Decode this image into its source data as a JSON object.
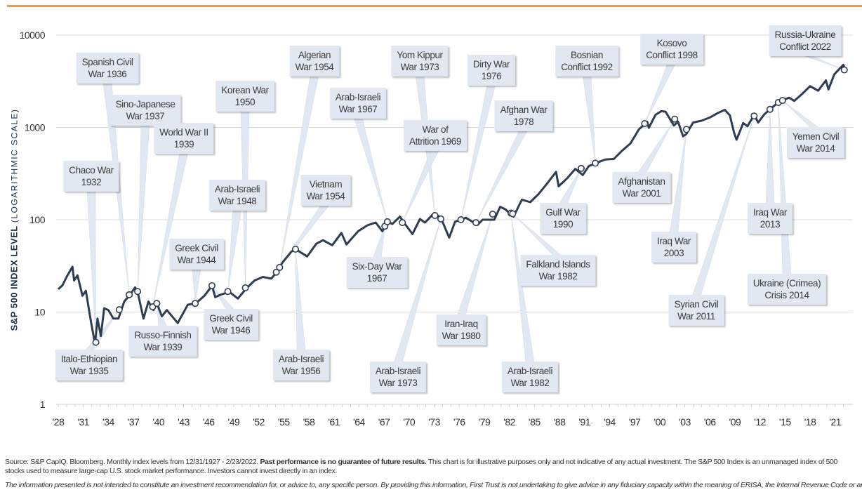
{
  "chart_data": {
    "type": "line",
    "title": "",
    "ylabel": "S&P 500 INDEX LEVEL",
    "ylabel_note": "(LOGARITHMIC SCALE)",
    "y_scale": "log",
    "ylim": [
      1,
      10000
    ],
    "y_ticks": [
      "1",
      "10",
      "100",
      "1000",
      "10000"
    ],
    "x_ticks": [
      "'28",
      "'31",
      "'34",
      "'37",
      "'40",
      "'43",
      "'46",
      "'49",
      "'52",
      "'55",
      "'58",
      "'61",
      "'64",
      "'67",
      "'70",
      "'73",
      "'76",
      "'79",
      "'82",
      "'85",
      "'88",
      "'91",
      "'94",
      "'97",
      "'00",
      "'03",
      "'06",
      "'09",
      "'12",
      "'15",
      "'18",
      "'21"
    ],
    "xlim": [
      1928,
      2022.15
    ],
    "grid": "horizontal",
    "line_color": "#2e3d52",
    "accent_color": "#ef9a4a",
    "callout_color": "#e1e8f2",
    "series": [
      {
        "x": [
          1928.0,
          1928.5,
          1929.0,
          1929.7,
          1929.9,
          1930.3,
          1930.9,
          1931.3,
          1931.9,
          1932.4,
          1932.7,
          1933.1,
          1933.5,
          1934.0,
          1934.6,
          1935.2,
          1935.9,
          1936.5,
          1937.2,
          1937.5,
          1938.2,
          1938.8,
          1939.4,
          1939.8,
          1940.4,
          1941.0,
          1942.3,
          1943.5,
          1944.5,
          1945.5,
          1946.4,
          1946.8,
          1947.5,
          1948.5,
          1949.5,
          1950.5,
          1951.5,
          1952.5,
          1953.5,
          1954.0,
          1954.9,
          1955.9,
          1956.4,
          1957.8,
          1958.9,
          1959.7,
          1960.8,
          1961.9,
          1962.5,
          1963.9,
          1965.0,
          1966.0,
          1966.8,
          1967.4,
          1968.0,
          1968.9,
          1969.5,
          1970.4,
          1971.3,
          1971.9,
          1973.0,
          1973.8,
          1974.8,
          1975.5,
          1976.8,
          1978.2,
          1978.8,
          1980.2,
          1980.9,
          1981.5,
          1982.5,
          1983.5,
          1984.5,
          1985.5,
          1986.5,
          1987.6,
          1987.9,
          1988.9,
          1989.9,
          1990.8,
          1991.5,
          1992.5,
          1993.5,
          1994.5,
          1995.5,
          1996.5,
          1997.5,
          1998.5,
          1998.7,
          1999.5,
          2000.2,
          2000.7,
          2001.7,
          2002.2,
          2002.8,
          2003.2,
          2004.0,
          2005.0,
          2006.0,
          2007.0,
          2007.8,
          2008.4,
          2008.9,
          2009.2,
          2010.0,
          2010.5,
          2011.3,
          2011.8,
          2012.5,
          2013.2,
          2014.0,
          2014.7,
          2015.5,
          2016.1,
          2017.0,
          2018.0,
          2018.97,
          2019.9,
          2020.2,
          2020.9,
          2021.5,
          2021.99,
          2022.15
        ],
        "values": [
          17.7,
          19.5,
          24,
          31,
          22,
          25,
          15,
          17,
          8,
          4.5,
          8.5,
          5.5,
          11,
          10.5,
          8.5,
          8.5,
          13,
          15,
          18.5,
          16.5,
          8.5,
          13,
          10.5,
          12.5,
          9,
          10.5,
          7.6,
          12,
          12.5,
          15,
          19.2,
          14.5,
          15.5,
          16.5,
          14,
          18,
          22,
          24,
          23,
          26,
          35,
          45,
          48,
          40,
          55,
          60,
          53,
          72,
          54,
          75,
          87,
          93,
          75,
          95,
          90,
          108,
          90,
          70,
          102,
          93,
          118,
          105,
          64,
          95,
          105,
          88,
          100,
          100,
          138,
          130,
          108,
          165,
          155,
          190,
          245,
          330,
          230,
          280,
          355,
          305,
          380,
          415,
          450,
          455,
          560,
          670,
          950,
          1150,
          990,
          1370,
          1500,
          1480,
          1050,
          1150,
          800,
          850,
          1130,
          1180,
          1280,
          1440,
          1550,
          1350,
          880,
          735,
          1115,
          1030,
          1360,
          1130,
          1380,
          1570,
          1800,
          1970,
          2100,
          1940,
          2280,
          2800,
          2500,
          3230,
          2580,
          3750,
          4300,
          4770,
          4300
        ]
      }
    ],
    "events": [
      {
        "lines": [
          "Chaco War",
          "1932"
        ],
        "x": 1932.5,
        "value": 4.7
      },
      {
        "lines": [
          "Italo-Ethiopian",
          "War 1935"
        ],
        "x": 1935.3,
        "value": 10.6
      },
      {
        "lines": [
          "Spanish Civil",
          "War 1936"
        ],
        "x": 1936.5,
        "value": 15.4
      },
      {
        "lines": [
          "Sino-Japanese",
          "War 1937"
        ],
        "x": 1937.5,
        "value": 16.7
      },
      {
        "lines": [
          "World War II",
          "1939"
        ],
        "x": 1939.3,
        "value": 11.4
      },
      {
        "lines": [
          "Russo-Finnish",
          "War 1939"
        ],
        "x": 1939.8,
        "value": 12.4
      },
      {
        "lines": [
          "Greek Civil",
          "War 1944"
        ],
        "x": 1944.4,
        "value": 12.4
      },
      {
        "lines": [
          "Greek Civil",
          "War 1946"
        ],
        "x": 1946.4,
        "value": 19.3
      },
      {
        "lines": [
          "Arab-Israeli",
          "War 1948"
        ],
        "x": 1948.3,
        "value": 16.7
      },
      {
        "lines": [
          "Korean War",
          "1950"
        ],
        "x": 1950.4,
        "value": 18.3
      },
      {
        "lines": [
          "Vietnam",
          "War 1954"
        ],
        "x": 1954.1,
        "value": 27
      },
      {
        "lines": [
          "Algerian",
          "War 1954"
        ],
        "x": 1954.5,
        "value": 30.5
      },
      {
        "lines": [
          "Arab-Israeli",
          "War 1956"
        ],
        "x": 1956.4,
        "value": 48
      },
      {
        "lines": [
          "Six-Day War",
          "1967"
        ],
        "x": 1967.1,
        "value": 85
      },
      {
        "lines": [
          "Arab-Israeli",
          "War 1967"
        ],
        "x": 1967.4,
        "value": 95
      },
      {
        "lines": [
          "War of",
          "Attrition 1969"
        ],
        "x": 1969.2,
        "value": 93
      },
      {
        "lines": [
          "Yom Kippur",
          "War 1973"
        ],
        "x": 1973.1,
        "value": 111
      },
      {
        "lines": [
          "Arab-Israeli",
          "War 1973"
        ],
        "x": 1973.8,
        "value": 102
      },
      {
        "lines": [
          "Dirty War",
          "1976"
        ],
        "x": 1976.2,
        "value": 100
      },
      {
        "lines": [
          "Afghan War",
          "1978"
        ],
        "x": 1978.0,
        "value": 93
      },
      {
        "lines": [
          "Iran-Iraq",
          "War 1980"
        ],
        "x": 1980.0,
        "value": 115
      },
      {
        "lines": [
          "Arab-Israeli",
          "War 1982"
        ],
        "x": 1982.2,
        "value": 118
      },
      {
        "lines": [
          "Falkland Islands",
          "War 1982"
        ],
        "x": 1982.4,
        "value": 116
      },
      {
        "lines": [
          "Gulf War",
          "1990"
        ],
        "x": 1990.6,
        "value": 360
      },
      {
        "lines": [
          "Bosnian",
          "Conflict 1992"
        ],
        "x": 1992.3,
        "value": 410
      },
      {
        "lines": [
          "Kosovo",
          "Conflict 1998"
        ],
        "x": 1998.2,
        "value": 1100
      },
      {
        "lines": [
          "Afghanistan",
          "War 2001"
        ],
        "x": 2001.8,
        "value": 1230
      },
      {
        "lines": [
          "Iraq War",
          "2003"
        ],
        "x": 2003.2,
        "value": 950
      },
      {
        "lines": [
          "Syrian Civil",
          "War 2011"
        ],
        "x": 2011.3,
        "value": 1330
      },
      {
        "lines": [
          "Iraq War",
          "2013"
        ],
        "x": 2013.2,
        "value": 1570
      },
      {
        "lines": [
          "Ukraine (Crimea)",
          "Crisis 2014"
        ],
        "x": 2014.2,
        "value": 1860
      },
      {
        "lines": [
          "Yemen Civil",
          "War 2014"
        ],
        "x": 2014.7,
        "value": 1960
      },
      {
        "lines": [
          "Russia-Ukraine",
          "Conflict 2022"
        ],
        "x": 2022.1,
        "value": 4200
      }
    ]
  },
  "footer": {
    "source_pre": "Source: S&P CapIQ. Bloomberg. Monthly index levels from 12/31/1927 - 2/23/2022. ",
    "source_bold": "Past performance is no guarantee of future results.",
    "source_post": " This chart is for illustrative purposes only and not indicative of any actual investment. The S&P 500 Index is an unmanaged index of 500 stocks used to measure large-cap U.S. stock market performance. Investors cannot invest directly in an index.",
    "disclaimer": "The information presented is not intended to constitute an investment recommendation for, or advice to, any specific person. By providing this information, First Trust is not undertaking to give advice in any fiduciary capacity within the meaning of ERISA, the Internal Revenue Code or any"
  }
}
